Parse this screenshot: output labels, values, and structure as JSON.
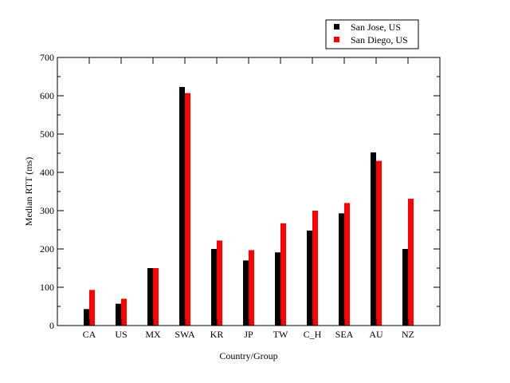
{
  "chart_data": {
    "type": "bar",
    "xlabel": "Country/Group",
    "ylabel": "Median RTT (ms)",
    "categories": [
      "CA",
      "US",
      "MX",
      "SWA",
      "KR",
      "JP",
      "TW",
      "C_H",
      "SEA",
      "AU",
      "NZ"
    ],
    "series": [
      {
        "name": "San Jose, US",
        "color": "#000000",
        "values": [
          43,
          57,
          150,
          623,
          200,
          170,
          191,
          248,
          293,
          452,
          200
        ]
      },
      {
        "name": "San Diego, US",
        "color": "#ff0000",
        "values": [
          93,
          70,
          150,
          607,
          222,
          197,
          267,
          300,
          320,
          430,
          331
        ]
      }
    ],
    "ylim": [
      0,
      700
    ],
    "yticks": [
      0,
      100,
      200,
      300,
      400,
      500,
      600,
      700
    ],
    "grid": false,
    "legend_position": "top-right"
  }
}
